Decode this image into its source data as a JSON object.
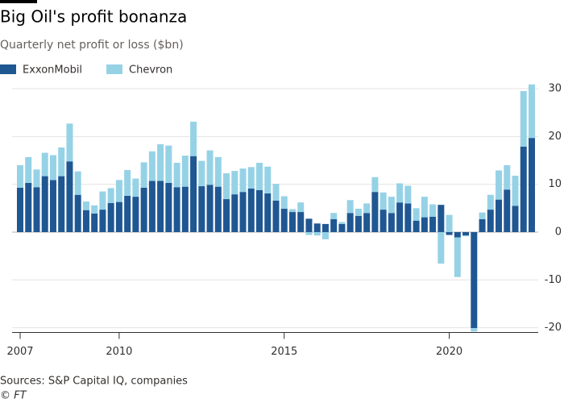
{
  "chart_data": {
    "type": "stacked-bar",
    "title": "Big Oil's profit bonanza",
    "subtitle": "Quarterly net profit or loss ($bn)",
    "source": "Sources: S&P Capital IQ, companies",
    "credit": "© FT",
    "categories": [
      "2007",
      null,
      null,
      null,
      null,
      null,
      null,
      null,
      null,
      null,
      null,
      null,
      "2010",
      null,
      null,
      null,
      null,
      null,
      null,
      null,
      null,
      null,
      null,
      null,
      null,
      null,
      null,
      null,
      null,
      null,
      null,
      null,
      "2015",
      null,
      null,
      null,
      null,
      null,
      null,
      null,
      null,
      null,
      null,
      null,
      null,
      null,
      null,
      null,
      null,
      null,
      null,
      null,
      "2020",
      null,
      null,
      null,
      null,
      null,
      null,
      null,
      null,
      null,
      null
    ],
    "series": [
      {
        "name": "ExxonMobil",
        "color": "#1f5792",
        "values": [
          9.3,
          10.3,
          9.4,
          11.7,
          10.9,
          11.7,
          14.8,
          7.8,
          4.6,
          3.9,
          4.7,
          6.1,
          6.3,
          7.6,
          7.4,
          9.3,
          10.7,
          10.7,
          10.3,
          9.4,
          9.5,
          15.9,
          9.6,
          9.9,
          9.5,
          6.9,
          7.9,
          8.4,
          9.1,
          8.8,
          8.1,
          6.6,
          4.9,
          4.2,
          4.2,
          2.8,
          1.8,
          1.7,
          2.7,
          1.7,
          4.0,
          3.4,
          4.0,
          8.4,
          4.7,
          4.0,
          6.2,
          6.0,
          2.4,
          3.1,
          3.2,
          5.7,
          -0.6,
          -1.1,
          -0.7,
          -20.1,
          2.7,
          4.7,
          6.8,
          8.9,
          5.5,
          17.9,
          19.7
        ]
      },
      {
        "name": "Chevron",
        "color": "#96d2e6",
        "values": [
          4.7,
          5.4,
          3.7,
          4.9,
          5.2,
          6.0,
          7.9,
          4.9,
          1.8,
          1.7,
          3.8,
          3.1,
          4.6,
          5.4,
          3.8,
          5.3,
          6.2,
          7.7,
          7.8,
          5.1,
          6.5,
          7.2,
          5.3,
          7.2,
          6.2,
          5.4,
          4.9,
          4.9,
          4.5,
          5.7,
          5.6,
          3.5,
          2.6,
          0.6,
          2.0,
          -0.6,
          -0.7,
          -1.5,
          1.3,
          0.4,
          2.7,
          1.5,
          2.0,
          3.1,
          3.6,
          3.4,
          4.0,
          3.7,
          2.6,
          4.3,
          2.6,
          -6.6,
          3.6,
          -8.3,
          -0.2,
          -0.7,
          1.4,
          3.1,
          6.1,
          5.1,
          6.3,
          11.6,
          11.2
        ]
      }
    ],
    "ylim": [
      -21,
      32
    ],
    "yticks": [
      30,
      20,
      10,
      0,
      -10,
      -20
    ],
    "grid": true
  }
}
